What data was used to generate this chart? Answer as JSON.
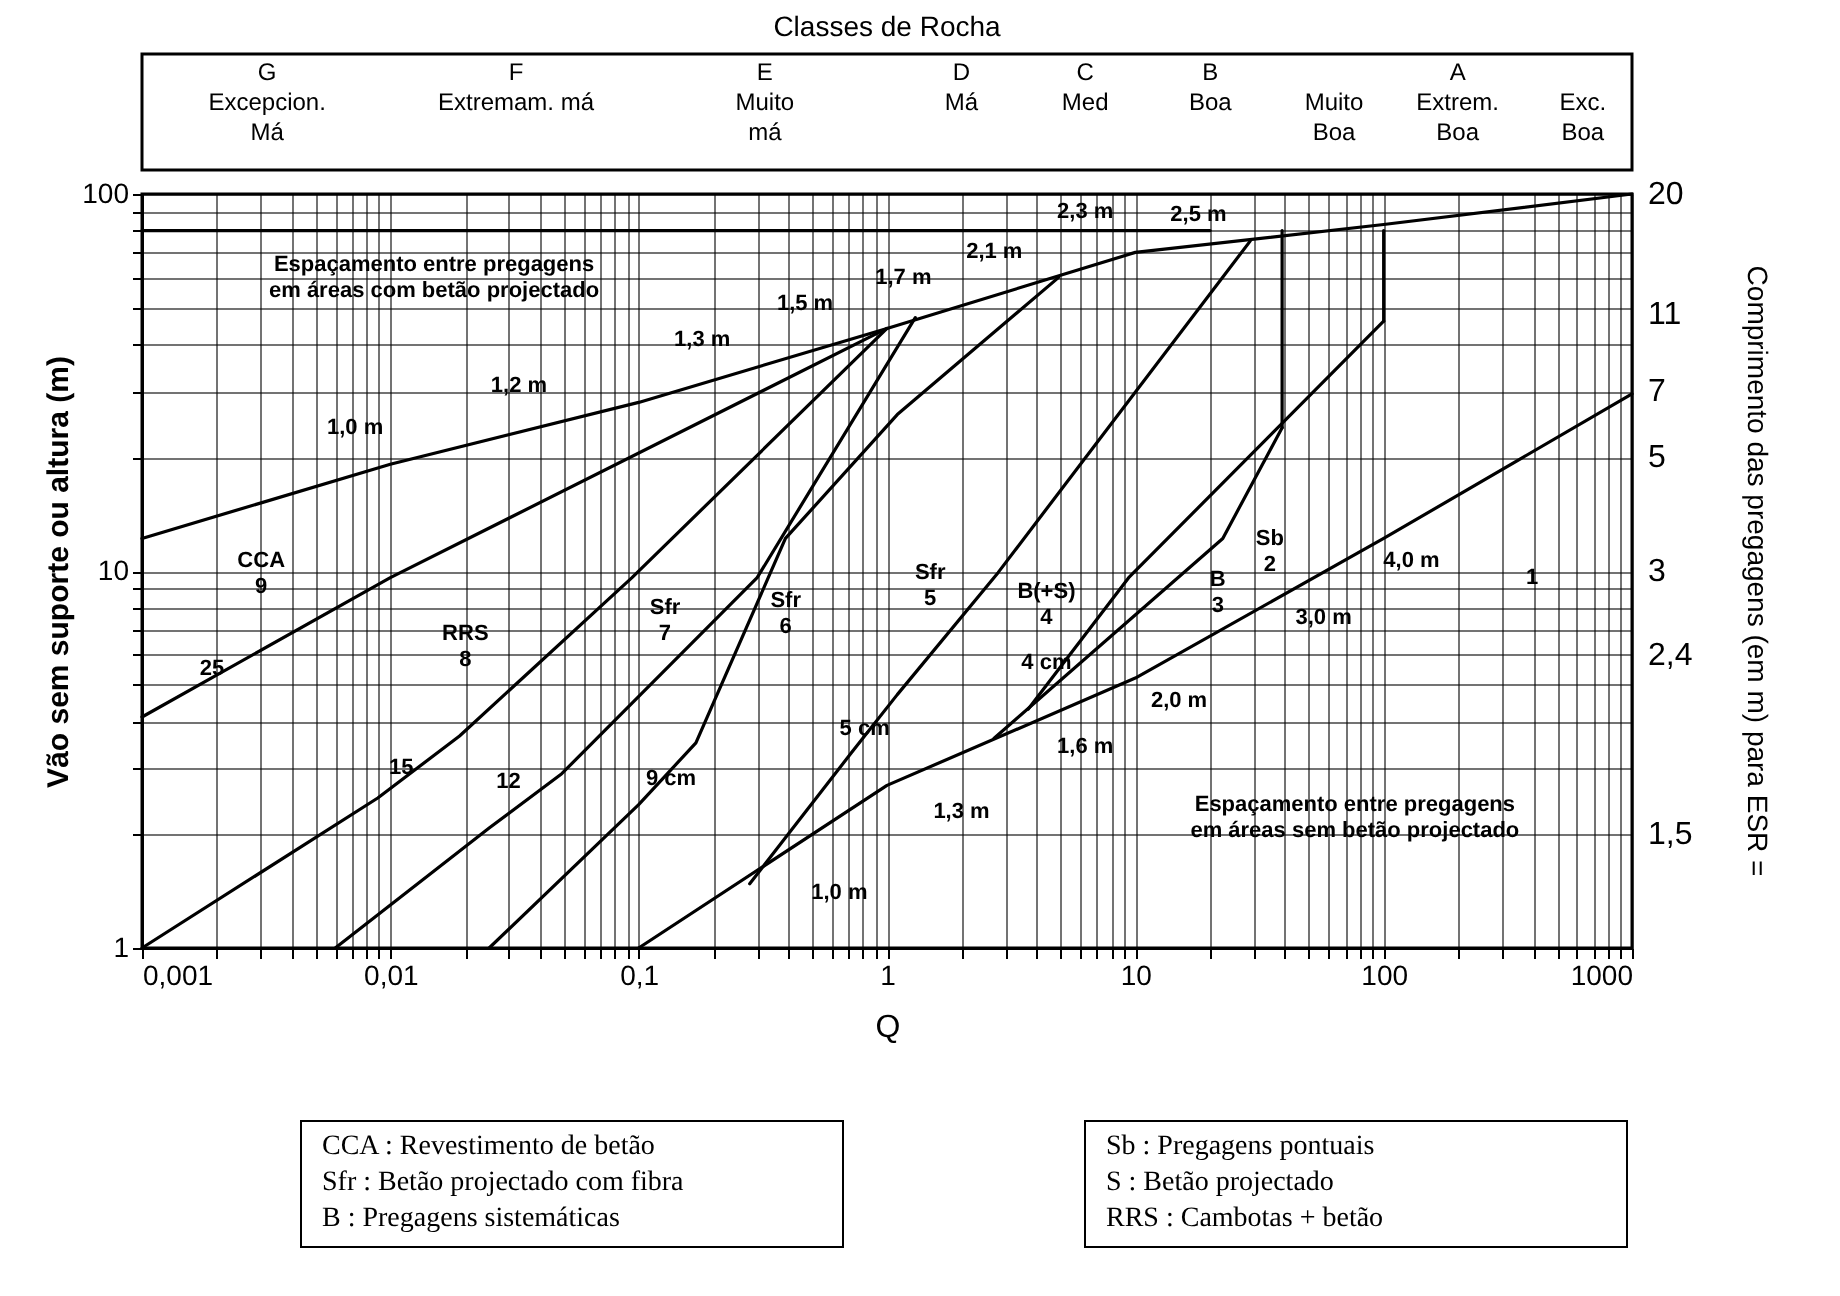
{
  "chart_data": {
    "type": "line",
    "title": "Classes de Rocha",
    "xlabel": "Q",
    "ylabel": "Vão sem suporte ou altura (m)",
    "y2label": "Comprimento das pregagens (em m) para ESR =",
    "log": "xy",
    "grid": true,
    "xlim": [
      0.001,
      1000
    ],
    "ylim": [
      1,
      100
    ],
    "xticks": [
      {
        "value": 0.001,
        "label": "0,001"
      },
      {
        "value": 0.002,
        "label": null
      },
      {
        "value": 0.003,
        "label": null
      },
      {
        "value": 0.004,
        "label": null
      },
      {
        "value": 0.005,
        "label": null
      },
      {
        "value": 0.006,
        "label": null
      },
      {
        "value": 0.007,
        "label": null
      },
      {
        "value": 0.008,
        "label": null
      },
      {
        "value": 0.009,
        "label": null
      },
      {
        "value": 0.01,
        "label": "0,01"
      },
      {
        "value": 0.02,
        "label": null
      },
      {
        "value": 0.03,
        "label": null
      },
      {
        "value": 0.04,
        "label": null
      },
      {
        "value": 0.05,
        "label": null
      },
      {
        "value": 0.06,
        "label": null
      },
      {
        "value": 0.07,
        "label": null
      },
      {
        "value": 0.08,
        "label": null
      },
      {
        "value": 0.09,
        "label": null
      },
      {
        "value": 0.1,
        "label": "0,1"
      },
      {
        "value": 0.2,
        "label": null
      },
      {
        "value": 0.3,
        "label": null
      },
      {
        "value": 0.4,
        "label": null
      },
      {
        "value": 0.5,
        "label": null
      },
      {
        "value": 0.6,
        "label": null
      },
      {
        "value": 0.7,
        "label": null
      },
      {
        "value": 0.8,
        "label": null
      },
      {
        "value": 0.9,
        "label": null
      },
      1,
      {
        "value": 2,
        "label": null
      },
      {
        "value": 3,
        "label": null
      },
      {
        "value": 4,
        "label": null
      },
      {
        "value": 5,
        "label": null
      },
      {
        "value": 6,
        "label": null
      },
      {
        "value": 7,
        "label": null
      },
      {
        "value": 8,
        "label": null
      },
      {
        "value": 9,
        "label": null
      },
      10,
      {
        "value": 20,
        "label": null
      },
      {
        "value": 30,
        "label": null
      },
      {
        "value": 40,
        "label": null
      },
      {
        "value": 50,
        "label": null
      },
      {
        "value": 60,
        "label": null
      },
      {
        "value": 70,
        "label": null
      },
      {
        "value": 80,
        "label": null
      },
      {
        "value": 90,
        "label": null
      },
      100,
      {
        "value": 200,
        "label": null
      },
      {
        "value": 300,
        "label": null
      },
      {
        "value": 400,
        "label": null
      },
      {
        "value": 500,
        "label": null
      },
      {
        "value": 600,
        "label": null
      },
      {
        "value": 700,
        "label": null
      },
      {
        "value": 800,
        "label": null
      },
      {
        "value": 900,
        "label": null
      },
      1000
    ],
    "yticks": [
      1,
      {
        "value": 2,
        "label": null
      },
      {
        "value": 3,
        "label": null
      },
      {
        "value": 4,
        "label": null
      },
      {
        "value": 5,
        "label": null
      },
      {
        "value": 6,
        "label": null
      },
      {
        "value": 7,
        "label": null
      },
      {
        "value": 8,
        "label": null
      },
      {
        "value": 9,
        "label": null
      },
      10,
      {
        "value": 20,
        "label": null
      },
      {
        "value": 30,
        "label": null
      },
      {
        "value": 40,
        "label": null
      },
      {
        "value": 50,
        "label": null
      },
      {
        "value": 60,
        "label": null
      },
      {
        "value": 70,
        "label": null
      },
      {
        "value": 80,
        "label": null
      },
      {
        "value": 90,
        "label": null
      },
      100
    ],
    "series": [
      {
        "color": "#000000",
        "x": [
          0.001,
          0.01,
          0.1,
          1,
          10,
          100,
          1000
        ],
        "values": [
          12.2,
          19.2,
          28,
          44,
          70,
          83,
          100
        ]
      },
      {
        "color": "#000000",
        "x": [
          0.1,
          1,
          10,
          100,
          1000
        ],
        "values": [
          1,
          2.7,
          5.2,
          12.2,
          29.5
        ]
      },
      {
        "color": "#000000",
        "x": [
          0.001,
          20
        ],
        "values": [
          80,
          80
        ]
      },
      {
        "color": "#000000",
        "x": [
          39,
          39
        ],
        "values": [
          24,
          80
        ]
      },
      {
        "color": "#000000",
        "x": [
          100,
          100
        ],
        "values": [
          46,
          80
        ]
      },
      {
        "color": "#000000",
        "x": [
          0.001,
          0.01,
          1
        ],
        "values": [
          4.1,
          9.6,
          44
        ]
      },
      {
        "color": "#000000",
        "x": [
          0.001,
          0.0089,
          0.019,
          0.094,
          1
        ],
        "values": [
          1,
          2.5,
          3.65,
          9.6,
          44
        ]
      },
      {
        "color": "#000000",
        "x": [
          0.006,
          0.025,
          0.049,
          0.3,
          1.3
        ],
        "values": [
          1,
          2.08,
          2.9,
          9.6,
          47
        ]
      },
      {
        "color": "#000000",
        "x": [
          0.025,
          0.1,
          0.17,
          0.39,
          1.1,
          4.9
        ],
        "values": [
          1,
          2.4,
          3.5,
          12.2,
          26,
          60
        ]
      },
      {
        "color": "#000000",
        "x": [
          0.28,
          0.72,
          1.1,
          2.8,
          29
        ],
        "values": [
          1.48,
          3.3,
          4.7,
          9.9,
          75
        ]
      },
      {
        "color": "#000000",
        "x": [
          2.7,
          22.5,
          39
        ],
        "values": [
          3.6,
          12.2,
          24
        ]
      },
      {
        "color": "#000000",
        "x": [
          3.7,
          9.4,
          100
        ],
        "values": [
          4.3,
          9.6,
          46
        ]
      }
    ],
    "annotations": [
      "G\nExcepcion.\nMá",
      "F\nExtremam. má",
      "E\nMuito\nmá",
      "D\nMá",
      "C\nMed",
      "B\nBoa",
      "A",
      "Muito\nBoa",
      "Extrem.\nBoa",
      "Exc.\nBoa",
      "1,0 m",
      "1,2 m",
      "1,3 m",
      "1,5 m",
      "1,7 m",
      "2,1 m",
      "2,3 m",
      "2,5 m",
      "Espaçamento entre pregagens\nem áreas com betão projectado",
      "1,0 m",
      "1,3 m",
      "1,6 m",
      "2,0 m",
      "3,0 m",
      "4,0 m",
      "Espaçamento entre pregagens\nem áreas sem betão projectado",
      "CCA\n9",
      "25",
      "RRS\n8",
      "15",
      "12",
      "Sfr\n7",
      "Sfr\n6",
      "9 cm",
      "5 cm",
      "Sfr\n5",
      "B(+S)\n4",
      "B\n3",
      "4 cm",
      "Sb\n2",
      "1",
      "20",
      "11",
      "7",
      "5",
      "3",
      "2,4",
      "1,5",
      "CCA : Revestimento de betão",
      "Sfr : Betão projectado com fibra",
      "B : Pregagens sistemáticas",
      "Sb : Pregagens pontuais",
      "S : Betão projectado",
      "RRS : Cambotas + betão"
    ]
  }
}
